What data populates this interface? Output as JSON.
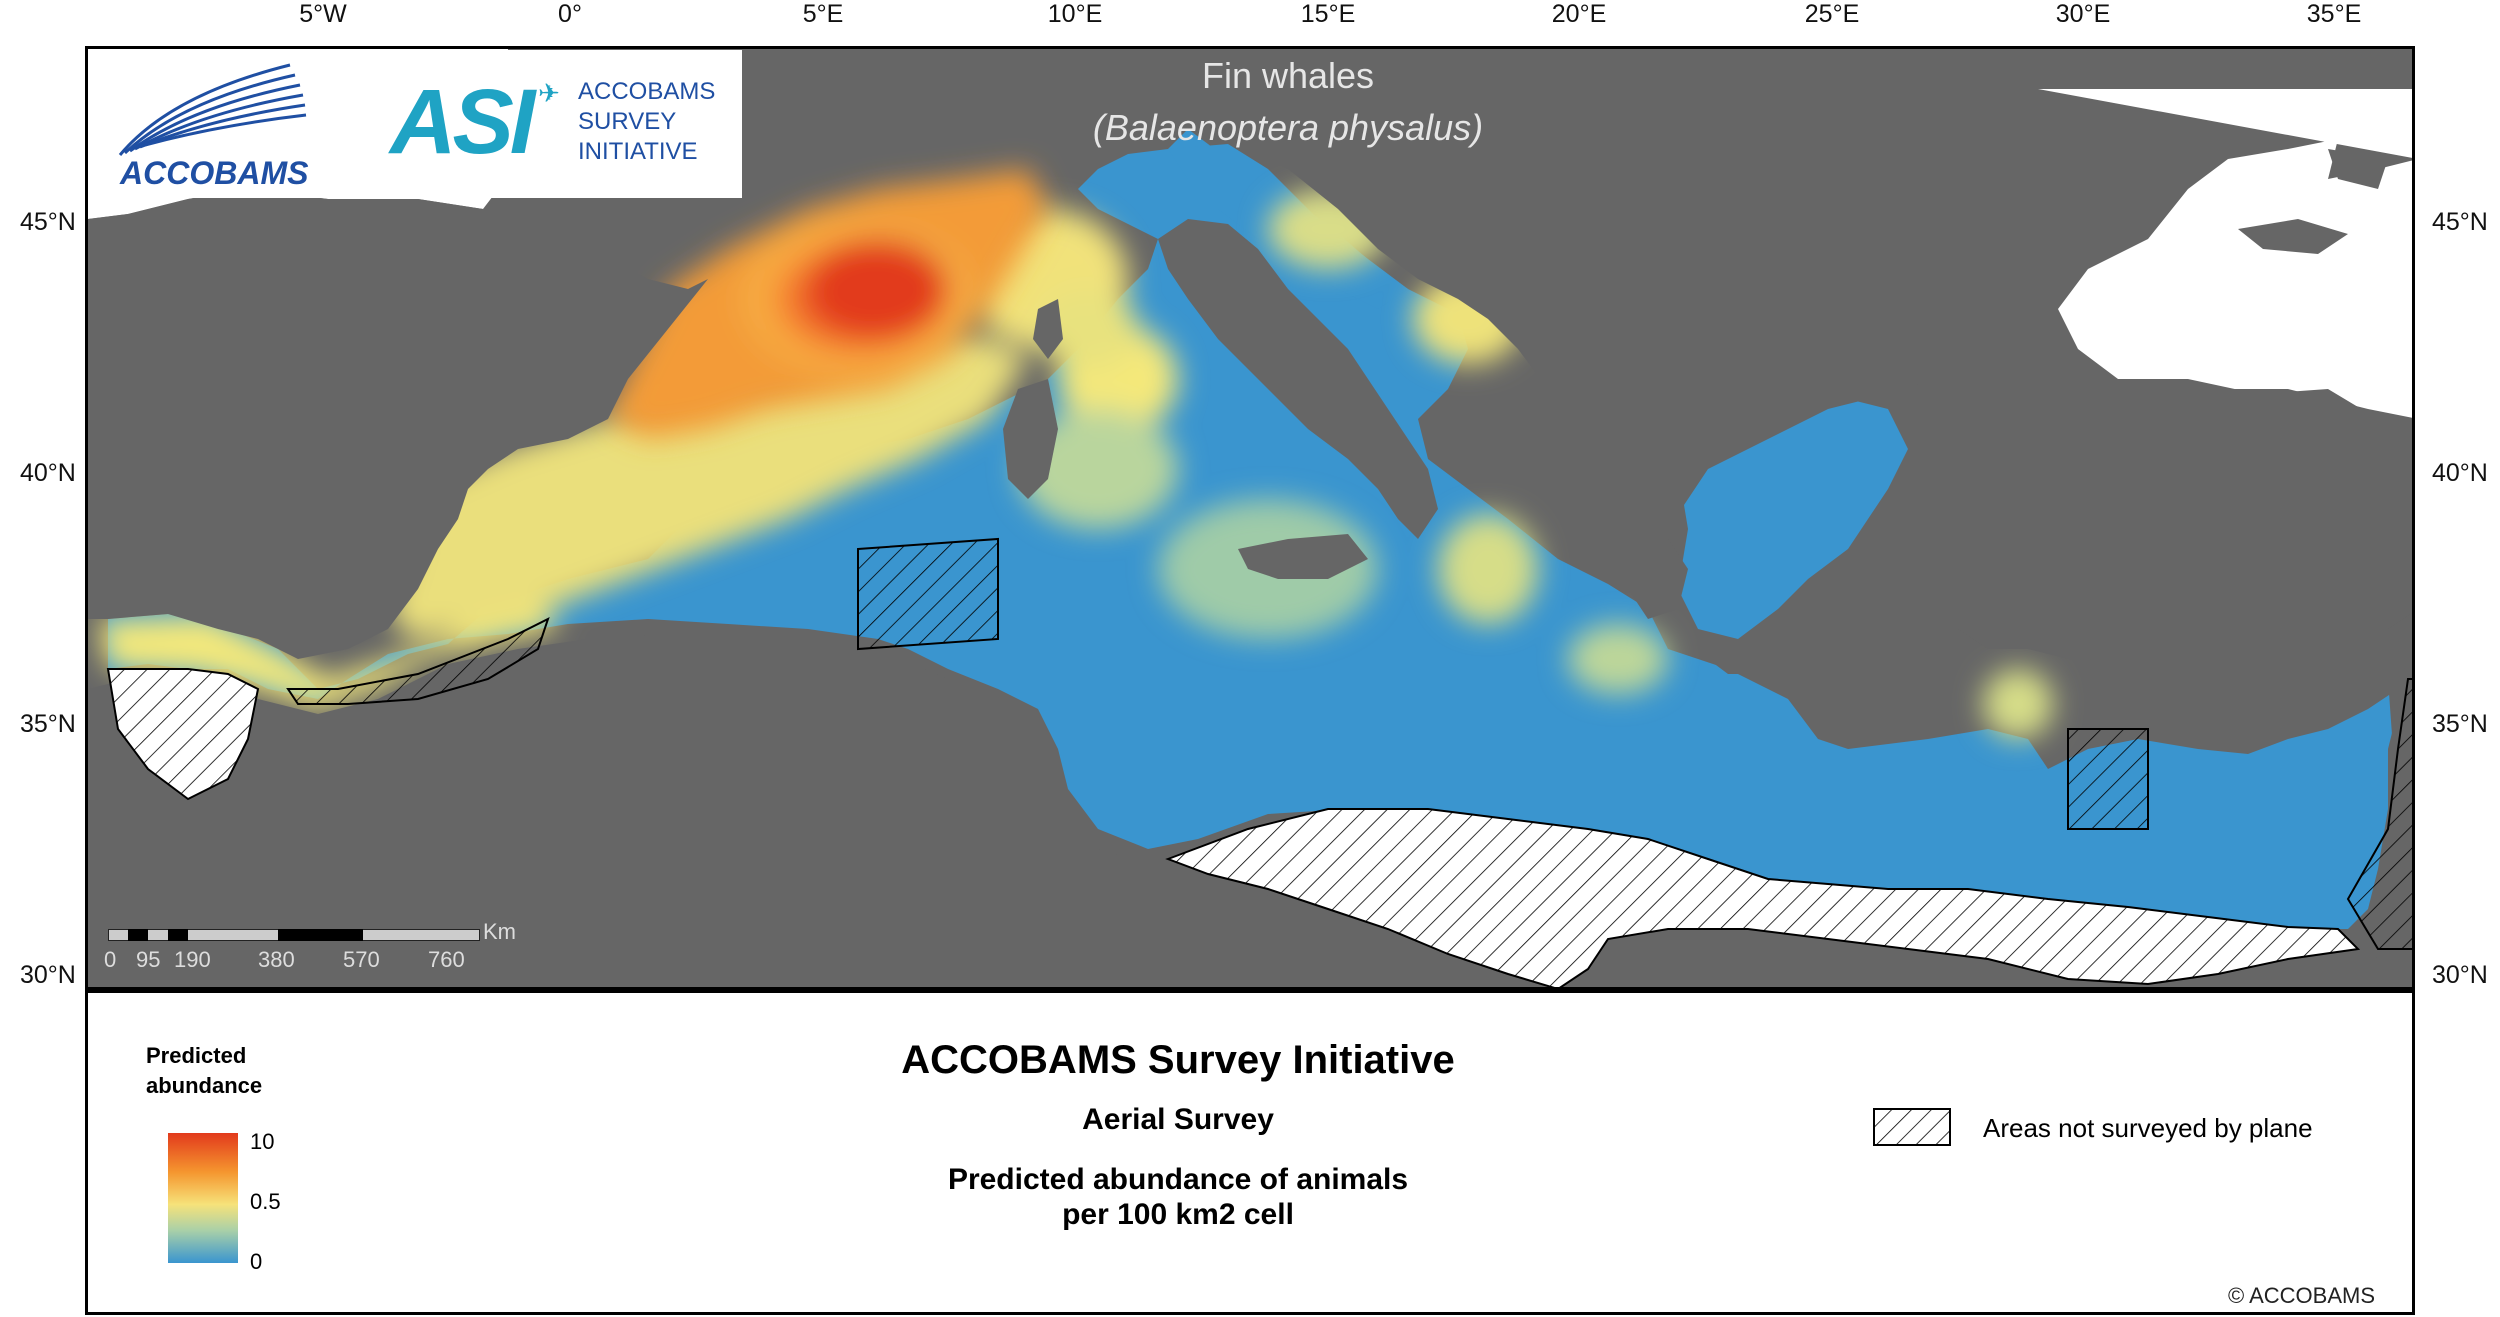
{
  "map": {
    "title": "Fin whales",
    "subtitle": "(Balaenoptera physalus)",
    "longitude_labels": [
      "5°W",
      "0°",
      "5°E",
      "10°E",
      "15°E",
      "20°E",
      "25°E",
      "30°E",
      "35°E"
    ],
    "latitude_labels": [
      "45°N",
      "40°N",
      "35°N",
      "30°N"
    ],
    "scale_bar": {
      "unit": "Km",
      "labels": [
        "0",
        "95",
        "190",
        "380",
        "570",
        "760"
      ]
    },
    "colors": {
      "background_land": "#666666",
      "black_sea_and_atlantic": "#ffffff",
      "low": "#3a95cf",
      "mid": "#f6f27a",
      "high": "#e23a1c"
    }
  },
  "logos": {
    "accobams": "ACCOBAMS",
    "asi_mark": "ASI",
    "asi_text": [
      "ACCOBAMS",
      "SURVEY",
      "INITIATIVE"
    ]
  },
  "legend": {
    "title_line1": "Predicted",
    "title_line2": "abundance",
    "ramp_labels": [
      "10",
      "0.5",
      "0"
    ],
    "heading": "ACCOBAMS Survey Initiative",
    "survey_type": "Aerial Survey",
    "description_line1": "Predicted abundance of animals",
    "description_line2": "per 100 km2 cell",
    "hatch_label": "Areas not surveyed by plane",
    "copyright": "© ACCOBAMS"
  }
}
